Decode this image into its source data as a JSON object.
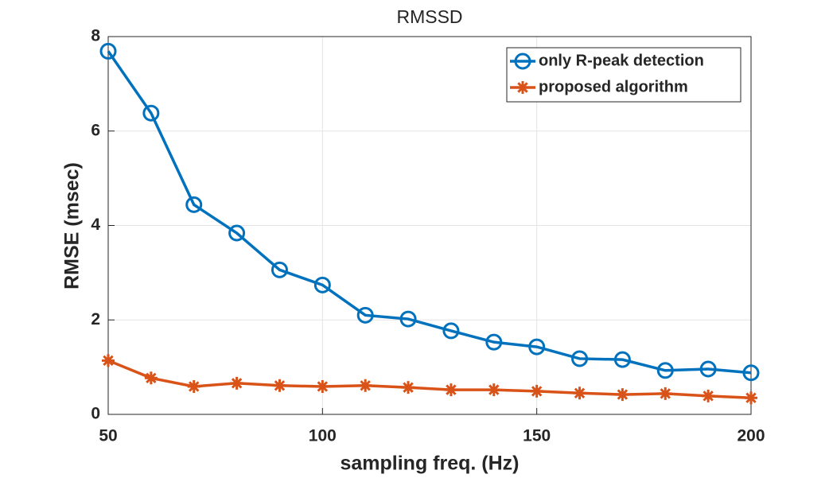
{
  "chart_data": {
    "type": "line",
    "title": "RMSSD",
    "x_label": "sampling freq. (Hz)",
    "y_label": "RMSE (msec)",
    "x": [
      50,
      60,
      70,
      80,
      90,
      100,
      110,
      120,
      130,
      140,
      150,
      160,
      170,
      180,
      190,
      200
    ],
    "series": [
      {
        "name": "only R-peak detection",
        "color": "#0072bd",
        "marker": "circle",
        "values": [
          7.69,
          6.38,
          4.44,
          3.84,
          3.06,
          2.74,
          2.1,
          2.02,
          1.77,
          1.53,
          1.43,
          1.18,
          1.16,
          0.93,
          0.96,
          0.88
        ]
      },
      {
        "name": "proposed algorithm",
        "color": "#d95319",
        "marker": "asterisk",
        "values": [
          1.14,
          0.77,
          0.59,
          0.66,
          0.61,
          0.59,
          0.61,
          0.57,
          0.52,
          0.52,
          0.49,
          0.45,
          0.42,
          0.44,
          0.39,
          0.35
        ]
      }
    ],
    "xlim": [
      50,
      200
    ],
    "xticks": [
      50,
      100,
      150,
      200
    ],
    "ylim": [
      0,
      8
    ],
    "yticks": [
      0,
      2,
      4,
      6,
      8
    ],
    "grid": true,
    "legend": "northeast"
  }
}
